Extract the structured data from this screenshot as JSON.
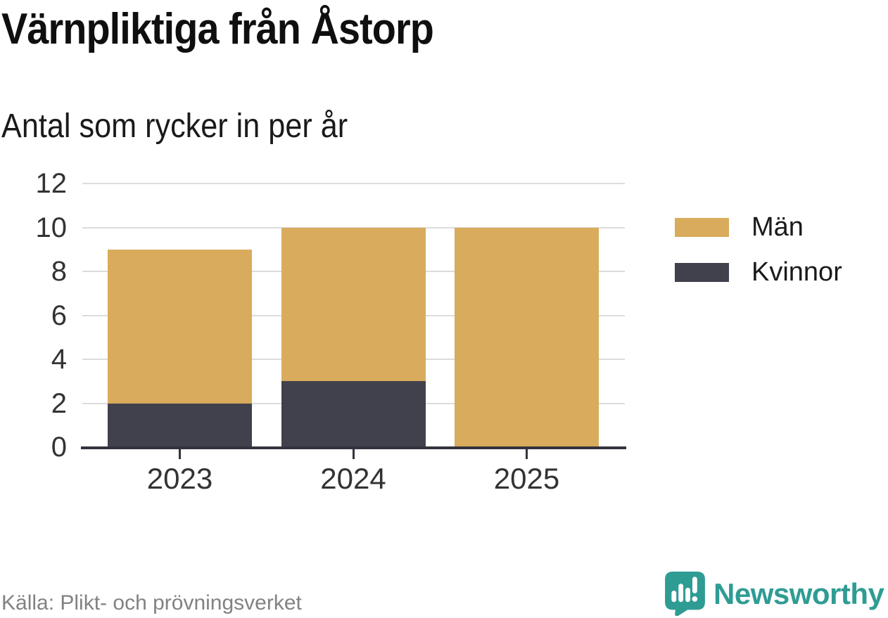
{
  "title": "Värnpliktiga från Åstorp",
  "subtitle": "Antal som rycker in per år",
  "source": "Källa: Plikt- och prövningsverket",
  "brand": {
    "name": "Newsworthy",
    "color": "#2f9c94",
    "icon": "newsworthy-chart-bubble-icon"
  },
  "colors": {
    "men": "#d9ab5c",
    "women": "#41414d",
    "axis": "#33333d",
    "grid": "#dcdcdc",
    "tick_label": "#333333",
    "source_text": "#828282"
  },
  "chart_data": {
    "type": "bar",
    "stacked": true,
    "categories": [
      "2023",
      "2024",
      "2025"
    ],
    "series": [
      {
        "name": "Män",
        "color": "#d9ab5c",
        "values": [
          7,
          7,
          10
        ]
      },
      {
        "name": "Kvinnor",
        "color": "#41414d",
        "values": [
          2,
          3,
          0
        ]
      }
    ],
    "totals": [
      9,
      10,
      10
    ],
    "title": "Värnpliktiga från Åstorp",
    "subtitle": "Antal som rycker in per år",
    "xlabel": "",
    "ylabel": "",
    "ylim": [
      0,
      12
    ],
    "yticks": [
      0,
      2,
      4,
      6,
      8,
      10,
      12
    ],
    "grid": "horizontal",
    "legend_position": "right"
  }
}
